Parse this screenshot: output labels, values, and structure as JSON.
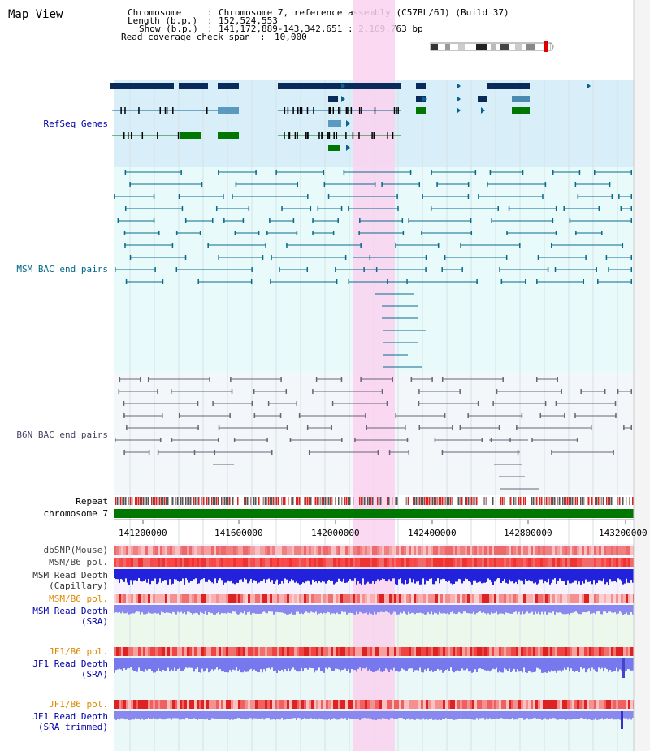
{
  "page": {
    "title": "Map View"
  },
  "header": {
    "chromosome_key": "Chromosome",
    "chromosome_val": "Chromosome 7, reference assembly (C57BL/6J) (Build 37)",
    "length_key": "Length (b.p.)",
    "length_val": "152,524,553",
    "show_key": "Show (b.p.)",
    "show_val": "141,172,889-143,342,651 : 2,169,763 bp",
    "span_key": "Read coverage check span",
    "span_val": "10,000"
  },
  "tracks": {
    "refseq": "RefSeq Genes",
    "msm_bac": "MSM BAC end pairs",
    "b6n_bac": "B6N BAC end pairs",
    "repeat": "Repeat",
    "chromosome": "chromosome 7",
    "dbsnp": "dbSNP(Mouse)",
    "msm_b6_pol_1": "MSM/B6 pol.",
    "msm_depth_cap_1": "MSM Read Depth",
    "msm_depth_cap_2": "(Capillary)",
    "msm_b6_pol_2": "MSM/B6 pol.",
    "msm_depth_sra_1": "MSM Read Depth",
    "msm_depth_sra_2": "(SRA)",
    "jf1_b6_pol_1": "JF1/B6 pol.",
    "jf1_depth_sra_1": "JF1 Read Depth",
    "jf1_depth_sra_2": "(SRA)",
    "jf1_b6_pol_2": "JF1/B6 pol.",
    "jf1_depth_trim_1": "JF1 Read Depth",
    "jf1_depth_trim_2": "(SRA trimmed)"
  },
  "axis": {
    "ticks": [
      "141200000",
      "141600000",
      "142000000",
      "142400000",
      "142800000",
      "143200000"
    ]
  },
  "colors": {
    "refseq_label": "#0000aa",
    "msm_label": "#006688",
    "b6n_label": "#444466",
    "pol_label": "#dd8800",
    "depth_label": "#0000aa",
    "highlight": "#fad2f0",
    "chromosome_bar": "#007700"
  }
}
